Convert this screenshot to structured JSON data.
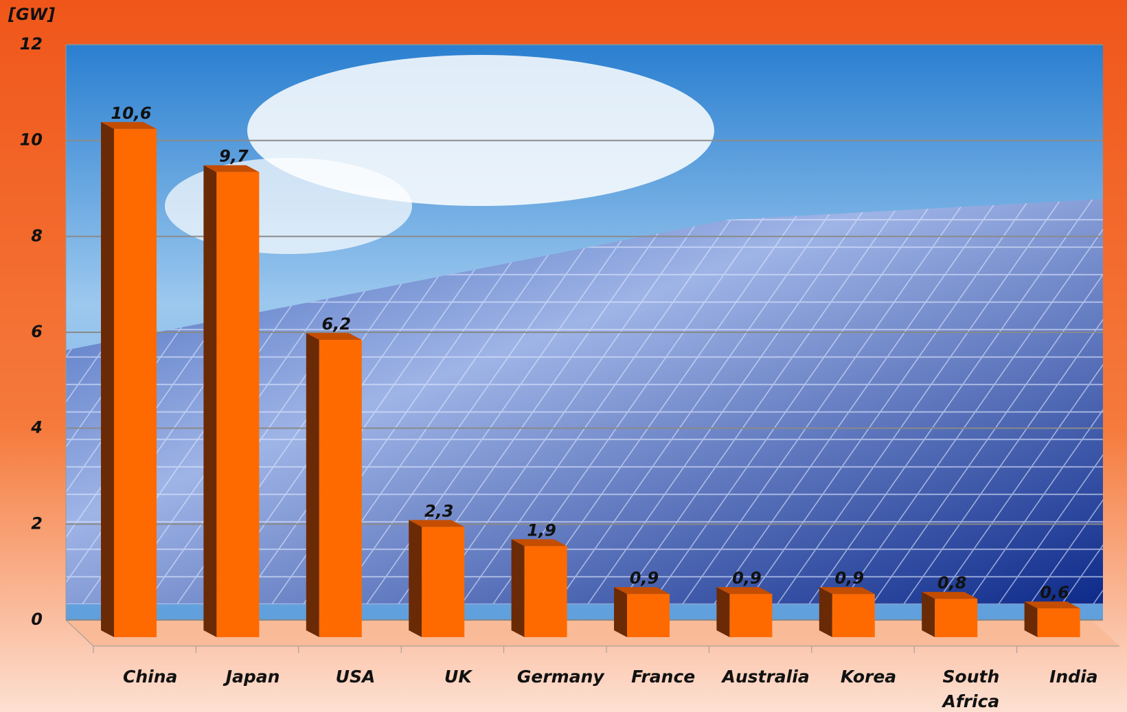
{
  "chart_data": {
    "type": "bar3d",
    "y_label": "[GW]",
    "categories": [
      "China",
      "Japan",
      "USA",
      "UK",
      "Germany",
      "France",
      "Australia",
      "Korea",
      "South Africa",
      "India"
    ],
    "values": [
      10.6,
      9.7,
      6.2,
      2.3,
      1.9,
      0.9,
      0.9,
      0.9,
      0.8,
      0.6
    ],
    "value_labels": [
      "10,6",
      "9,7",
      "6,2",
      "2,3",
      "1,9",
      "0,9",
      "0,9",
      "0,9",
      "0,8",
      "0,6"
    ],
    "color": "#ff6a00",
    "ylim": [
      0,
      12
    ],
    "yticks": [
      0,
      2,
      4,
      6,
      8,
      10,
      12
    ],
    "grid": true
  }
}
